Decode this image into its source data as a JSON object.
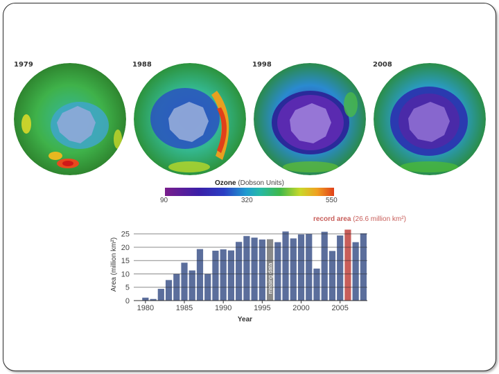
{
  "globes": [
    {
      "year": "1979"
    },
    {
      "year": "1988"
    },
    {
      "year": "1998"
    },
    {
      "year": "2008"
    }
  ],
  "colorbar": {
    "title_bold": "Ozone",
    "title_rest": "(Dobson Units)",
    "ticks": [
      "90",
      "320",
      "550"
    ],
    "range": [
      90,
      550
    ]
  },
  "chart_data": {
    "type": "bar",
    "xlabel": "Year",
    "ylabel": "Area (million km²)",
    "ylim": [
      0,
      27
    ],
    "yticks": [
      0,
      5,
      10,
      15,
      20,
      25
    ],
    "xticks": [
      "1980",
      "1985",
      "1990",
      "1995",
      "2000",
      "2005"
    ],
    "grid": "horizontal",
    "x": [
      1979,
      1980,
      1981,
      1982,
      1983,
      1984,
      1985,
      1986,
      1987,
      1988,
      1989,
      1990,
      1991,
      1992,
      1993,
      1994,
      1995,
      1996,
      1997,
      1998,
      1999,
      2000,
      2001,
      2002,
      2003,
      2004,
      2005,
      2006,
      2007,
      2008
    ],
    "values": [
      0.1,
      1.1,
      0.6,
      4.4,
      7.7,
      10.0,
      14.2,
      11.3,
      19.3,
      10.0,
      18.7,
      19.2,
      18.8,
      22.0,
      24.2,
      23.6,
      22.9,
      null,
      21.9,
      25.9,
      23.3,
      24.8,
      25.0,
      12.0,
      25.8,
      18.6,
      24.4,
      26.6,
      21.9,
      25.2
    ],
    "missing_year": 1996,
    "missing_label": "missing data",
    "record_year": 2006,
    "record_label_bold": "record area",
    "record_label_rest": "(26.6 million km²)",
    "colors": {
      "bar": "#5b6e9c",
      "missing": "#8a8a8a",
      "record": "#c85e5a"
    }
  }
}
